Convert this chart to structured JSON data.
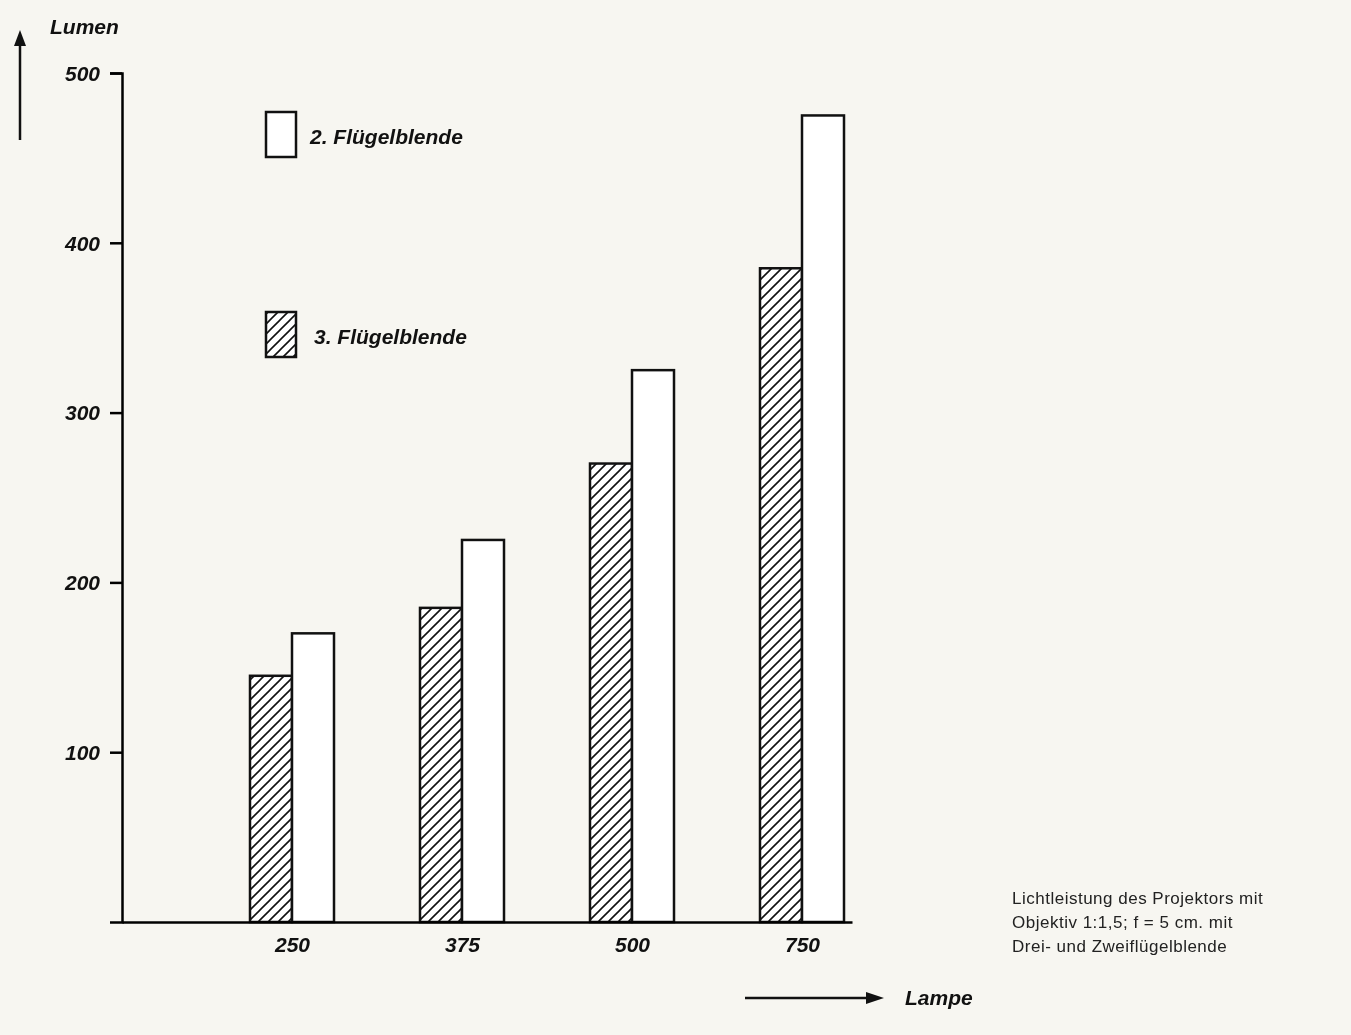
{
  "chart_data": {
    "type": "bar",
    "xlabel": "Lampe",
    "ylabel": "Lumen",
    "categories": [
      "250",
      "375",
      "500",
      "750"
    ],
    "series": [
      {
        "name": "3. Flügelblende",
        "color": "#111111",
        "values": [
          145,
          185,
          270,
          385
        ]
      },
      {
        "name": "2. Flügelblende",
        "color": "#ffffff",
        "values": [
          170,
          225,
          325,
          475
        ]
      }
    ],
    "ylim": [
      0,
      500
    ],
    "yticks": [
      100,
      200,
      300,
      400,
      500
    ],
    "grid": false,
    "legend": "top left",
    "annotations": [
      "Lichtleistung des Projektors mit Objektiv 1:1,5; f = 5 cm. mit Drei- und Zweiflügelblende"
    ]
  }
}
